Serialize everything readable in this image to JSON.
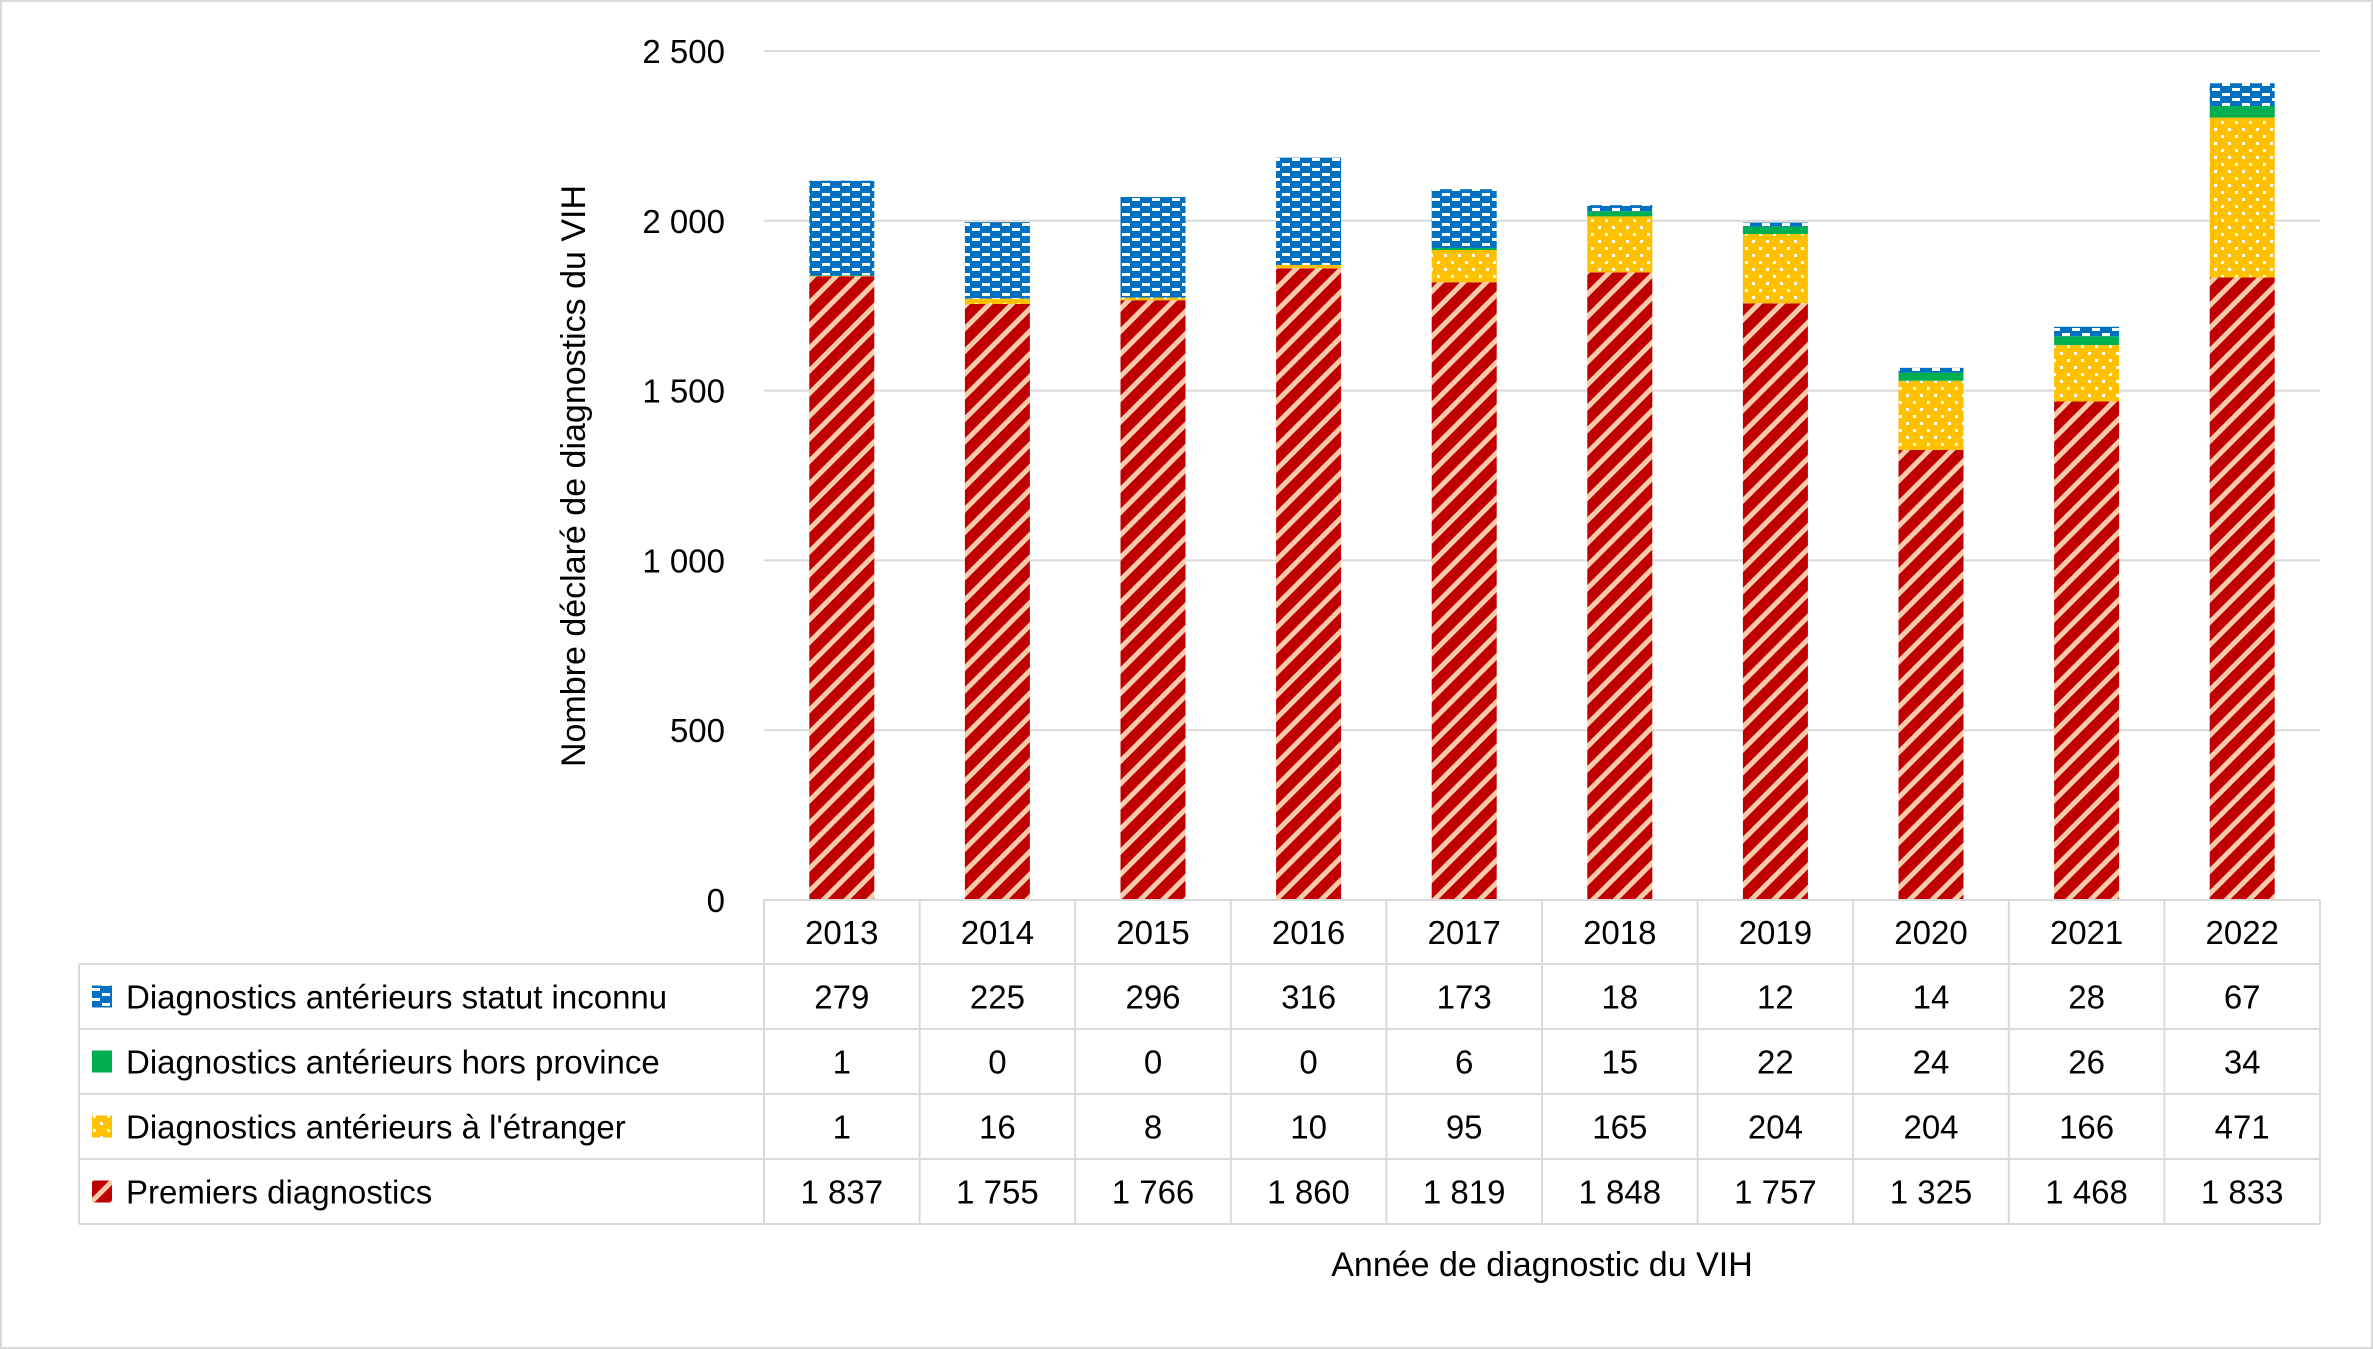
{
  "chart_data": {
    "type": "bar",
    "stacked": true,
    "title": "",
    "xlabel": "Année de diagnostic du VIH",
    "ylabel": "Nombre déclaré de diagnostics du VIH",
    "ylim": [
      0,
      2500
    ],
    "yticks": [
      0,
      500,
      1000,
      1500,
      2000,
      2500
    ],
    "grid": true,
    "legend": "data-table-below",
    "categories": [
      "2013",
      "2014",
      "2015",
      "2016",
      "2017",
      "2018",
      "2019",
      "2020",
      "2021",
      "2022"
    ],
    "series": [
      {
        "name": "Premiers diagnostics",
        "color": "#c00000",
        "pattern": "diagonal-stripes",
        "pattern_color": "#f8cbad",
        "values": [
          1837,
          1755,
          1766,
          1860,
          1819,
          1848,
          1757,
          1325,
          1468,
          1833
        ]
      },
      {
        "name": "Diagnostics antérieurs à l'étranger",
        "color": "#ffc000",
        "pattern": "dots",
        "values": [
          1,
          16,
          8,
          10,
          95,
          165,
          204,
          204,
          166,
          471
        ]
      },
      {
        "name": "Diagnostics antérieurs hors province",
        "color": "#00b050",
        "pattern": "solid",
        "values": [
          1,
          0,
          0,
          0,
          6,
          15,
          22,
          24,
          26,
          34
        ]
      },
      {
        "name": "Diagnostics antérieurs statut inconnu",
        "color": "#0070c0",
        "pattern": "dashes",
        "values": [
          279,
          225,
          296,
          316,
          173,
          18,
          12,
          14,
          28,
          67
        ]
      }
    ]
  }
}
